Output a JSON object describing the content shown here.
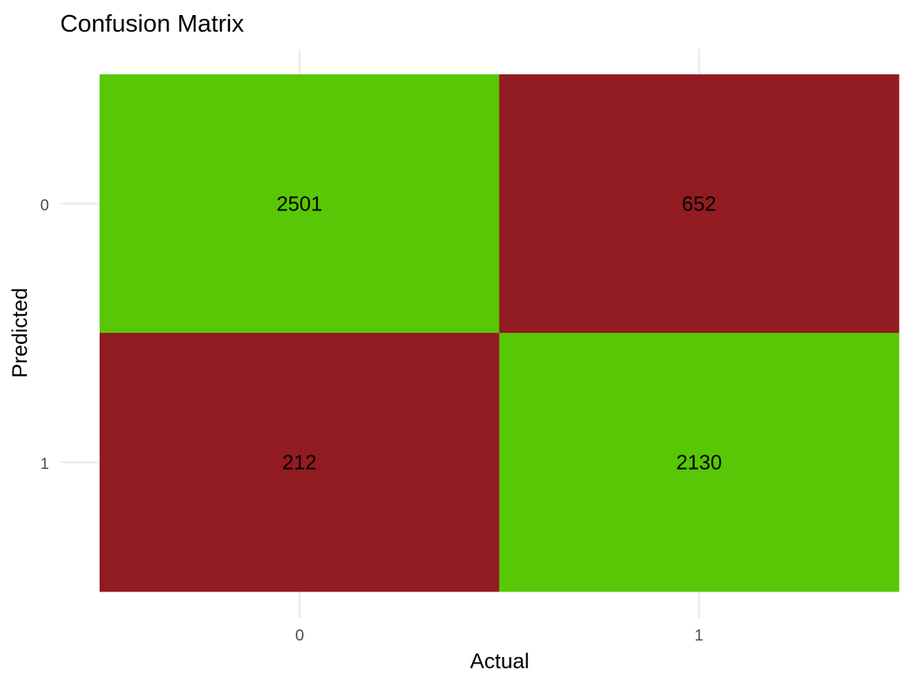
{
  "chart_data": {
    "type": "heatmap",
    "title": "Confusion Matrix",
    "xlabel": "Actual",
    "ylabel": "Predicted",
    "x_categories": [
      "0",
      "1"
    ],
    "y_categories": [
      "0",
      "1"
    ],
    "cells": [
      {
        "actual": "0",
        "predicted": "0",
        "value": 2501,
        "label": "2501",
        "color": "#58c705"
      },
      {
        "actual": "1",
        "predicted": "0",
        "value": 652,
        "label": "652",
        "color": "#921b22"
      },
      {
        "actual": "0",
        "predicted": "1",
        "value": 212,
        "label": "212",
        "color": "#921b22"
      },
      {
        "actual": "1",
        "predicted": "1",
        "value": 2130,
        "label": "2130",
        "color": "#58c705"
      }
    ],
    "colors": {
      "correct": "#58c705",
      "incorrect": "#921b22",
      "grid": "#ebebeb",
      "tick_text": "#4d4d4d"
    },
    "grid": true,
    "legend": "none"
  }
}
